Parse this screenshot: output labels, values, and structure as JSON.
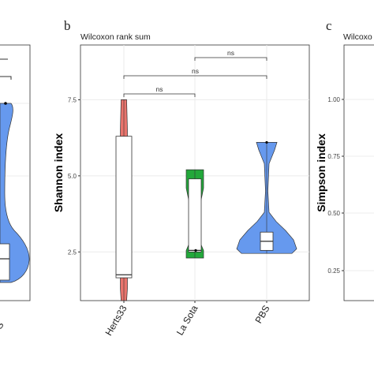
{
  "panels": {
    "a": {
      "letter": "",
      "x_tick": "S"
    },
    "b": {
      "letter": "b",
      "test_label": "Wilcoxon rank sum",
      "ylabel": "Shannon index",
      "comparisons": [
        {
          "pair": [
            "Herts33",
            "La Sota"
          ],
          "label": "ns"
        },
        {
          "pair": [
            "Herts33",
            "PBS"
          ],
          "label": "ns"
        },
        {
          "pair": [
            "La Sota",
            "PBS"
          ],
          "label": "ns"
        }
      ]
    },
    "c": {
      "letter": "c",
      "test_label": "Wilcoxo",
      "ylabel": "Simpson index",
      "y_ticks": [
        "1.00",
        "0.75",
        "0.50",
        "0.25"
      ]
    }
  },
  "chart_data": [
    {
      "type": "violin",
      "title": "",
      "subtitle": "Wilcoxon rank sum",
      "xlabel": "",
      "ylabel": "Shannon index",
      "ylim": [
        0.9,
        9.3
      ],
      "y_ticks": [
        2.5,
        5.0,
        7.5
      ],
      "y_tick_labels": [
        "2.5",
        "5.0",
        "7.5"
      ],
      "grid": true,
      "categories": [
        "Herts33",
        "La Sota",
        "PBS"
      ],
      "colors": [
        "#e8736c",
        "#22a83a",
        "#6699ee"
      ],
      "groups": [
        {
          "name": "Herts33",
          "min": 0.9,
          "q1": 1.65,
          "median": 1.75,
          "q3": 6.3,
          "max": 7.5
        },
        {
          "name": "La Sota",
          "min": 2.3,
          "q1": 2.5,
          "median": 2.55,
          "q3": 4.9,
          "max": 5.2
        },
        {
          "name": "PBS",
          "min": 2.45,
          "q1": 2.55,
          "median": 2.85,
          "q3": 3.15,
          "max": 6.1
        }
      ],
      "comparisons": [
        "ns",
        "ns",
        "ns"
      ]
    }
  ]
}
